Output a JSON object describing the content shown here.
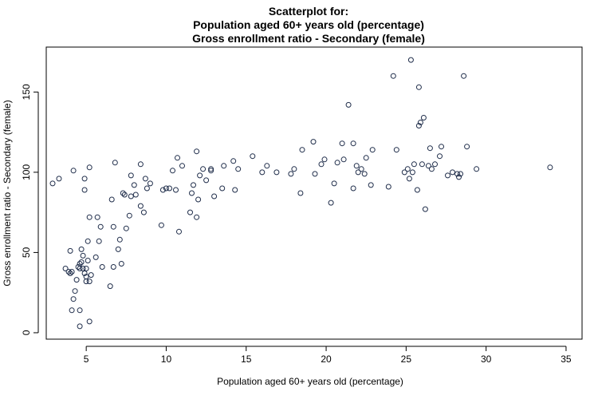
{
  "chart_data": {
    "type": "scatter",
    "title_lines": [
      "Scatterplot for:",
      "Population aged 60+ years old (percentage)",
      "Gross enrollment ratio - Secondary (female)"
    ],
    "xlabel": "Population aged 60+ years old (percentage)",
    "ylabel": "Gross enrollment ratio - Secondary (female)",
    "xlim": [
      2.5,
      36
    ],
    "ylim": [
      -4,
      178
    ],
    "x_ticks": [
      5,
      10,
      15,
      20,
      25,
      30,
      35
    ],
    "y_ticks": [
      0,
      50,
      100,
      150
    ],
    "point_color": "#1f2d4a",
    "grid": false,
    "points": [
      [
        2.9,
        93
      ],
      [
        3.3,
        96
      ],
      [
        3.7,
        40
      ],
      [
        3.9,
        38
      ],
      [
        4.0,
        51
      ],
      [
        4.0,
        37
      ],
      [
        4.1,
        14
      ],
      [
        4.1,
        38
      ],
      [
        4.2,
        101
      ],
      [
        4.2,
        21
      ],
      [
        4.3,
        26
      ],
      [
        4.4,
        33
      ],
      [
        4.5,
        41
      ],
      [
        4.6,
        4
      ],
      [
        4.6,
        43
      ],
      [
        4.6,
        14
      ],
      [
        4.6,
        40
      ],
      [
        4.7,
        52
      ],
      [
        4.7,
        44
      ],
      [
        4.8,
        40
      ],
      [
        4.8,
        48
      ],
      [
        4.9,
        89
      ],
      [
        4.9,
        96
      ],
      [
        4.9,
        37
      ],
      [
        5.0,
        40
      ],
      [
        5.0,
        35
      ],
      [
        5.0,
        32
      ],
      [
        5.1,
        57
      ],
      [
        5.1,
        45
      ],
      [
        5.2,
        103
      ],
      [
        5.2,
        72
      ],
      [
        5.2,
        32
      ],
      [
        5.2,
        7
      ],
      [
        5.3,
        36
      ],
      [
        5.6,
        47
      ],
      [
        5.7,
        72
      ],
      [
        5.8,
        57
      ],
      [
        5.9,
        66
      ],
      [
        6.0,
        41
      ],
      [
        6.5,
        29
      ],
      [
        6.6,
        83
      ],
      [
        6.7,
        41
      ],
      [
        6.7,
        66
      ],
      [
        6.8,
        106
      ],
      [
        7.0,
        52
      ],
      [
        7.1,
        58
      ],
      [
        7.2,
        43
      ],
      [
        7.3,
        87
      ],
      [
        7.4,
        86
      ],
      [
        7.5,
        65
      ],
      [
        7.7,
        73
      ],
      [
        7.8,
        98
      ],
      [
        7.8,
        85
      ],
      [
        8.0,
        92
      ],
      [
        8.1,
        86
      ],
      [
        8.4,
        105
      ],
      [
        8.4,
        79
      ],
      [
        8.6,
        75
      ],
      [
        8.7,
        96
      ],
      [
        8.8,
        90
      ],
      [
        9.0,
        93
      ],
      [
        9.7,
        67
      ],
      [
        9.8,
        89
      ],
      [
        10.0,
        90
      ],
      [
        10.2,
        90
      ],
      [
        10.4,
        101
      ],
      [
        10.6,
        89
      ],
      [
        10.7,
        109
      ],
      [
        10.8,
        63
      ],
      [
        11.0,
        104
      ],
      [
        11.5,
        75
      ],
      [
        11.6,
        87
      ],
      [
        11.7,
        92
      ],
      [
        11.9,
        72
      ],
      [
        11.9,
        113
      ],
      [
        12.0,
        83
      ],
      [
        12.1,
        98
      ],
      [
        12.3,
        102
      ],
      [
        12.5,
        95
      ],
      [
        12.8,
        102
      ],
      [
        12.8,
        101
      ],
      [
        13.0,
        85
      ],
      [
        13.5,
        90
      ],
      [
        13.6,
        104
      ],
      [
        14.2,
        107
      ],
      [
        14.3,
        89
      ],
      [
        14.5,
        102
      ],
      [
        15.4,
        110
      ],
      [
        16.0,
        100
      ],
      [
        16.3,
        104
      ],
      [
        16.9,
        100
      ],
      [
        17.8,
        99
      ],
      [
        18.0,
        102
      ],
      [
        18.4,
        87
      ],
      [
        18.5,
        114
      ],
      [
        19.2,
        119
      ],
      [
        19.3,
        99
      ],
      [
        19.7,
        105
      ],
      [
        19.9,
        108
      ],
      [
        20.3,
        81
      ],
      [
        20.5,
        93
      ],
      [
        20.7,
        106
      ],
      [
        21.0,
        118
      ],
      [
        21.1,
        108
      ],
      [
        21.4,
        142
      ],
      [
        21.7,
        118
      ],
      [
        21.7,
        90
      ],
      [
        21.9,
        104
      ],
      [
        22.0,
        100
      ],
      [
        22.2,
        102
      ],
      [
        22.4,
        99
      ],
      [
        22.5,
        109
      ],
      [
        22.8,
        92
      ],
      [
        22.9,
        114
      ],
      [
        23.9,
        91
      ],
      [
        24.2,
        160
      ],
      [
        24.4,
        114
      ],
      [
        24.9,
        100
      ],
      [
        25.1,
        102
      ],
      [
        25.2,
        96
      ],
      [
        25.3,
        170
      ],
      [
        25.4,
        100
      ],
      [
        25.5,
        105
      ],
      [
        25.7,
        89
      ],
      [
        25.8,
        153
      ],
      [
        25.8,
        129
      ],
      [
        25.9,
        131
      ],
      [
        26.0,
        105
      ],
      [
        26.1,
        134
      ],
      [
        26.2,
        77
      ],
      [
        26.4,
        104
      ],
      [
        26.5,
        115
      ],
      [
        26.6,
        102
      ],
      [
        26.8,
        105
      ],
      [
        27.1,
        110
      ],
      [
        27.2,
        116
      ],
      [
        27.6,
        98
      ],
      [
        27.9,
        100
      ],
      [
        28.2,
        99
      ],
      [
        28.3,
        97
      ],
      [
        28.4,
        99
      ],
      [
        28.6,
        160
      ],
      [
        28.8,
        116
      ],
      [
        29.4,
        102
      ],
      [
        34.0,
        103
      ]
    ]
  }
}
